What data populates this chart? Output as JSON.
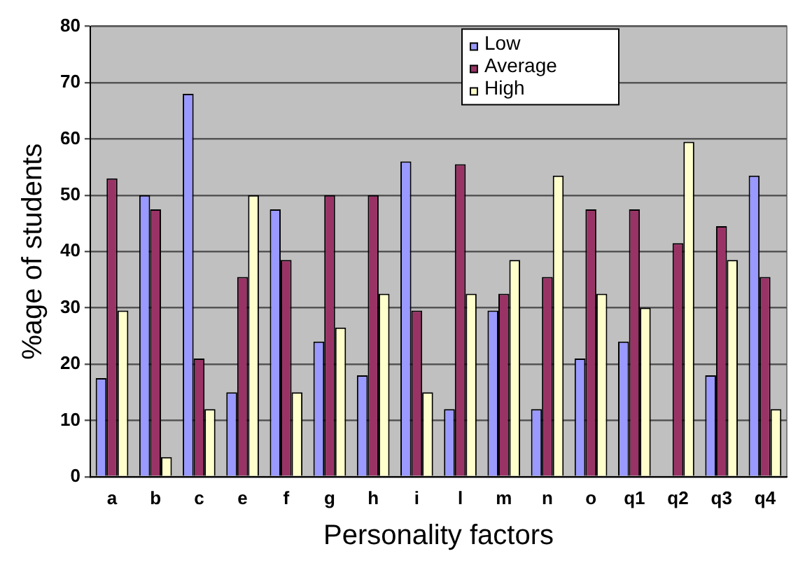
{
  "chart_data": {
    "type": "bar",
    "xlabel": "Personality factors",
    "ylabel": "%age of students",
    "categories": [
      "a",
      "b",
      "c",
      "e",
      "f",
      "g",
      "h",
      "i",
      "l",
      "m",
      "n",
      "o",
      "q1",
      "q2",
      "q3",
      "q4"
    ],
    "series": [
      {
        "name": "Low",
        "color": "#9999ff",
        "values": [
          17.5,
          50,
          68,
          15,
          47.5,
          24,
          18,
          56,
          12,
          29.5,
          12,
          21,
          24,
          0,
          18,
          53.5
        ]
      },
      {
        "name": "Average",
        "color": "#993366",
        "values": [
          53,
          47.5,
          21,
          35.5,
          38.5,
          50,
          50,
          29.5,
          55.5,
          32.5,
          35.5,
          47.5,
          47.5,
          41.5,
          44.5,
          35.5
        ]
      },
      {
        "name": "High",
        "color": "#ffffcc",
        "values": [
          29.5,
          3.5,
          12,
          50,
          15,
          26.5,
          32.5,
          15,
          32.5,
          38.5,
          53.5,
          32.5,
          30,
          59.5,
          38.5,
          12
        ]
      }
    ],
    "ylim": [
      0,
      80
    ],
    "yticks": [
      0,
      10,
      20,
      30,
      40,
      50,
      60,
      70,
      80
    ],
    "grid": "y",
    "legend": "top right"
  }
}
